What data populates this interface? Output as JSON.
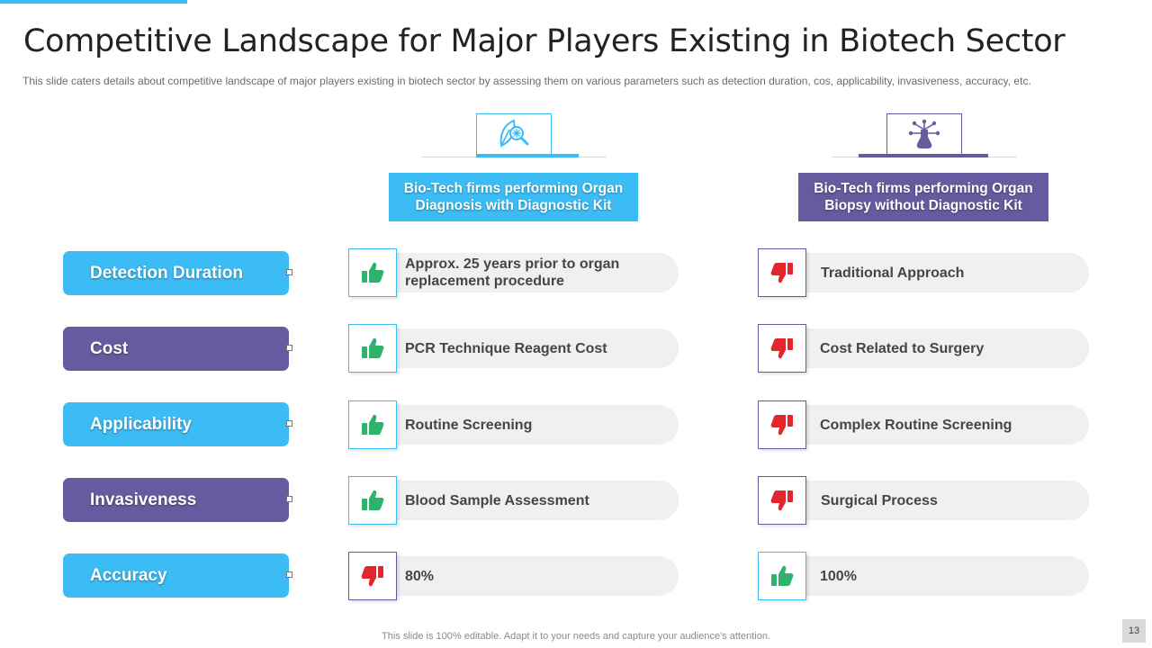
{
  "title": "Competitive Landscape for Major Players Existing in Biotech Sector",
  "subtitle": "This slide caters details about competitive landscape of major players existing in biotech sector by assessing them on various parameters such as detection duration, cos, applicability, invasiveness, accuracy, etc.",
  "columns": [
    {
      "heading": "Bio-Tech firms performing Organ Diagnosis with Diagnostic Kit",
      "icon": "leaf-virus-magnifier-icon",
      "color": "#3bbcf4"
    },
    {
      "heading": "Bio-Tech firms performing Organ Biopsy without Diagnostic Kit",
      "icon": "lab-flask-icon",
      "color": "#685a9e"
    }
  ],
  "rows": [
    {
      "parameter": "Detection Duration",
      "kit": "Approx. 25 years prior to organ replacement procedure",
      "kit_rating": "thumbs-up",
      "no_kit": "Traditional Approach",
      "no_kit_rating": "thumbs-down"
    },
    {
      "parameter": "Cost",
      "kit": "PCR Technique Reagent Cost",
      "kit_rating": "thumbs-up",
      "no_kit": "Cost Related to Surgery",
      "no_kit_rating": "thumbs-down"
    },
    {
      "parameter": "Applicability",
      "kit": "Routine Screening",
      "kit_rating": "thumbs-up",
      "no_kit": "Complex Routine Screening",
      "no_kit_rating": "thumbs-down"
    },
    {
      "parameter": "Invasiveness",
      "kit": "Blood Sample Assessment",
      "kit_rating": "thumbs-up",
      "no_kit": "Surgical Process",
      "no_kit_rating": "thumbs-down"
    },
    {
      "parameter": "Accuracy",
      "kit": "80%",
      "kit_rating": "thumbs-down",
      "no_kit": "100%",
      "no_kit_rating": "thumbs-up"
    }
  ],
  "colors": {
    "accent_blue": "#3bbcf4",
    "accent_purple": "#685a9e",
    "thumbs_up": "#2db36b",
    "thumbs_down": "#e3262b"
  },
  "footer": "This slide is 100% editable. Adapt it to your needs and capture your audience's attention.",
  "page_number": "13"
}
